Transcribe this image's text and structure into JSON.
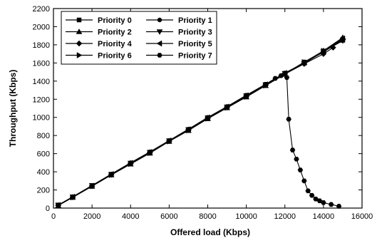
{
  "chart_data": {
    "type": "line",
    "xlabel": "Offered load (Kbps)",
    "ylabel": "Throughput (Kbps)",
    "xlim": [
      0,
      16000
    ],
    "ylim": [
      0,
      2200
    ],
    "xticks": [
      0,
      2000,
      4000,
      6000,
      8000,
      10000,
      12000,
      14000,
      16000
    ],
    "yticks": [
      0,
      200,
      400,
      600,
      800,
      1000,
      1200,
      1400,
      1600,
      1800,
      2000,
      2200
    ],
    "grid": false,
    "legend_position": "top-left",
    "series": [
      {
        "name": "Priority 0",
        "marker": "square",
        "x": [
          250,
          1000,
          2000,
          3000,
          4000,
          5000,
          6000,
          7000,
          8000,
          9000,
          10000,
          11000,
          12000,
          13000,
          14000,
          15000
        ],
        "y": [
          30,
          120,
          245,
          370,
          490,
          610,
          740,
          860,
          990,
          1110,
          1230,
          1355,
          1480,
          1610,
          1730,
          1850
        ]
      },
      {
        "name": "Priority 1",
        "marker": "circle",
        "x": [
          250,
          1000,
          2000,
          3000,
          4000,
          5000,
          6000,
          7000,
          8000,
          9000,
          10000,
          11000,
          12000,
          13000,
          14000,
          15000
        ],
        "y": [
          35,
          125,
          250,
          375,
          500,
          620,
          745,
          870,
          1000,
          1120,
          1245,
          1365,
          1490,
          1600,
          1720,
          1860
        ]
      },
      {
        "name": "Priority 2",
        "marker": "triangle-up",
        "x": [
          250,
          1000,
          2000,
          3000,
          4000,
          5000,
          6000,
          7000,
          8000,
          9000,
          10000,
          11000,
          12000,
          13000,
          14000,
          15000
        ],
        "y": [
          28,
          118,
          240,
          365,
          485,
          605,
          735,
          855,
          985,
          1105,
          1225,
          1350,
          1475,
          1605,
          1735,
          1880
        ]
      },
      {
        "name": "Priority 3",
        "marker": "triangle-down",
        "x": [
          250,
          1000,
          2000,
          3000,
          4000,
          5000,
          6000,
          7000,
          8000,
          9000,
          10000,
          11000,
          12000,
          13000,
          14000,
          15000
        ],
        "y": [
          32,
          122,
          248,
          372,
          495,
          615,
          742,
          865,
          995,
          1115,
          1240,
          1360,
          1485,
          1595,
          1725,
          1845
        ]
      },
      {
        "name": "Priority 4",
        "marker": "diamond",
        "x": [
          250,
          1000,
          2000,
          3000,
          4000,
          5000,
          6000,
          7000,
          8000,
          9000,
          10000,
          11000,
          12000,
          13000,
          14000,
          14500
        ],
        "y": [
          30,
          120,
          242,
          368,
          492,
          612,
          738,
          862,
          992,
          1112,
          1235,
          1358,
          1478,
          1590,
          1700,
          1770
        ]
      },
      {
        "name": "Priority 5",
        "marker": "triangle-left",
        "x": [
          250,
          1000,
          2000,
          3000,
          4000,
          5000,
          6000,
          7000,
          8000,
          9000,
          10000,
          11000,
          12000,
          13000,
          14000,
          15000
        ],
        "y": [
          33,
          124,
          246,
          374,
          497,
          618,
          744,
          868,
          998,
          1118,
          1242,
          1362,
          1488,
          1602,
          1728,
          1870
        ]
      },
      {
        "name": "Priority 6",
        "marker": "triangle-right",
        "x": [
          250,
          1000,
          2000,
          3000,
          4000,
          5000,
          6000,
          7000,
          8000,
          9000,
          10000,
          11000,
          12000,
          13000,
          14000,
          15000
        ],
        "y": [
          29,
          119,
          243,
          366,
          488,
          608,
          736,
          858,
          988,
          1108,
          1228,
          1352,
          1478,
          1608,
          1732,
          1855
        ]
      },
      {
        "name": "Priority 7",
        "marker": "hexagon",
        "x": [
          250,
          1000,
          2000,
          3000,
          4000,
          5000,
          6000,
          7000,
          8000,
          9000,
          10000,
          11000,
          11500,
          11800,
          12000,
          12100,
          12200,
          12400,
          12600,
          12800,
          13000,
          13200,
          13400,
          13600,
          13800,
          14000,
          14400,
          14800
        ],
        "y": [
          30,
          120,
          245,
          370,
          495,
          615,
          740,
          865,
          990,
          1115,
          1240,
          1365,
          1430,
          1460,
          1480,
          1440,
          980,
          640,
          540,
          420,
          300,
          190,
          140,
          100,
          80,
          60,
          40,
          20
        ]
      }
    ]
  }
}
